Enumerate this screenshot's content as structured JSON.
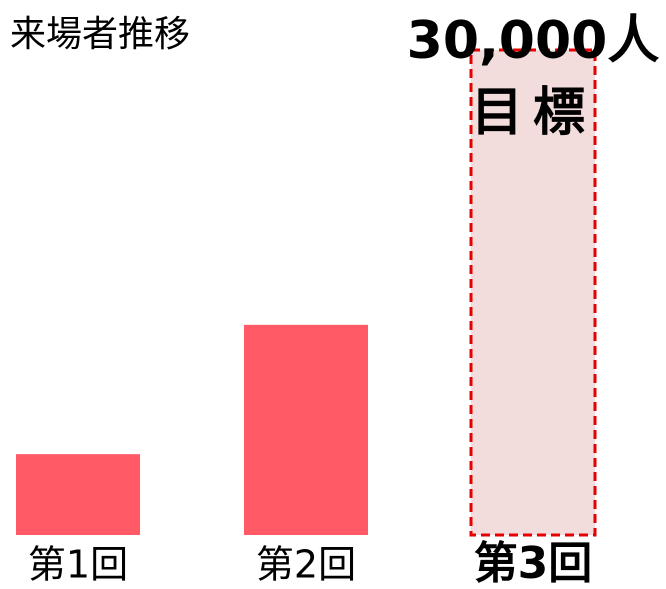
{
  "chart_data": {
    "type": "bar",
    "title": "来場者推移",
    "categories": [
      "第1回",
      "第2回",
      "第3回"
    ],
    "values": [
      5000,
      13000,
      30000
    ],
    "value_labels": [
      null,
      null,
      "30,000人"
    ],
    "annotation": "目標",
    "colors": [
      "#ff5a66",
      "#ff5a66",
      "#f2dcdc"
    ],
    "target_border_color": "#e60000"
  }
}
